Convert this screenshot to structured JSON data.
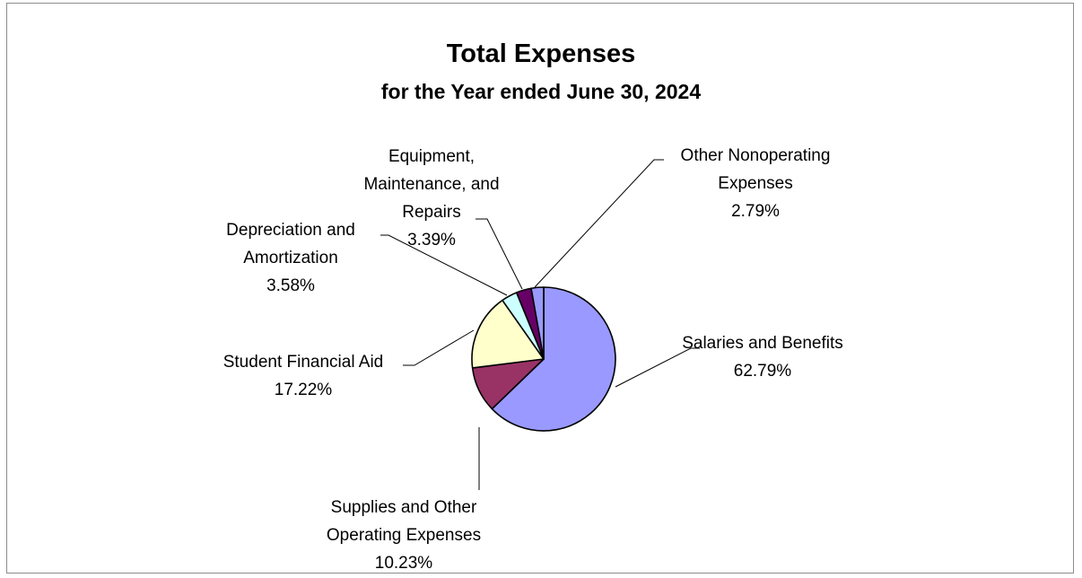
{
  "chart_data": {
    "type": "pie",
    "title": "Total Expenses",
    "subtitle": "for the Year ended June 30, 2024",
    "slices": [
      {
        "label_lines": [
          "Salaries and Benefits"
        ],
        "value": 62.79,
        "value_label": "62.79%",
        "color": "#9999ff"
      },
      {
        "label_lines": [
          "Supplies and Other",
          "Operating Expenses"
        ],
        "value": 10.23,
        "value_label": "10.23%",
        "color": "#993366"
      },
      {
        "label_lines": [
          "Student Financial Aid"
        ],
        "value": 17.22,
        "value_label": "17.22%",
        "color": "#ffffcc"
      },
      {
        "label_lines": [
          "Depreciation and",
          "Amortization"
        ],
        "value": 3.58,
        "value_label": "3.58%",
        "color": "#ccffff"
      },
      {
        "label_lines": [
          "Equipment,",
          "Maintenance, and",
          "Repairs"
        ],
        "value": 3.39,
        "value_label": "3.39%",
        "color": "#660066"
      },
      {
        "label_lines": [
          "Other Nonoperating",
          "Expenses"
        ],
        "value": 2.79,
        "value_label": "2.79%",
        "color": "#9999ff"
      }
    ]
  }
}
